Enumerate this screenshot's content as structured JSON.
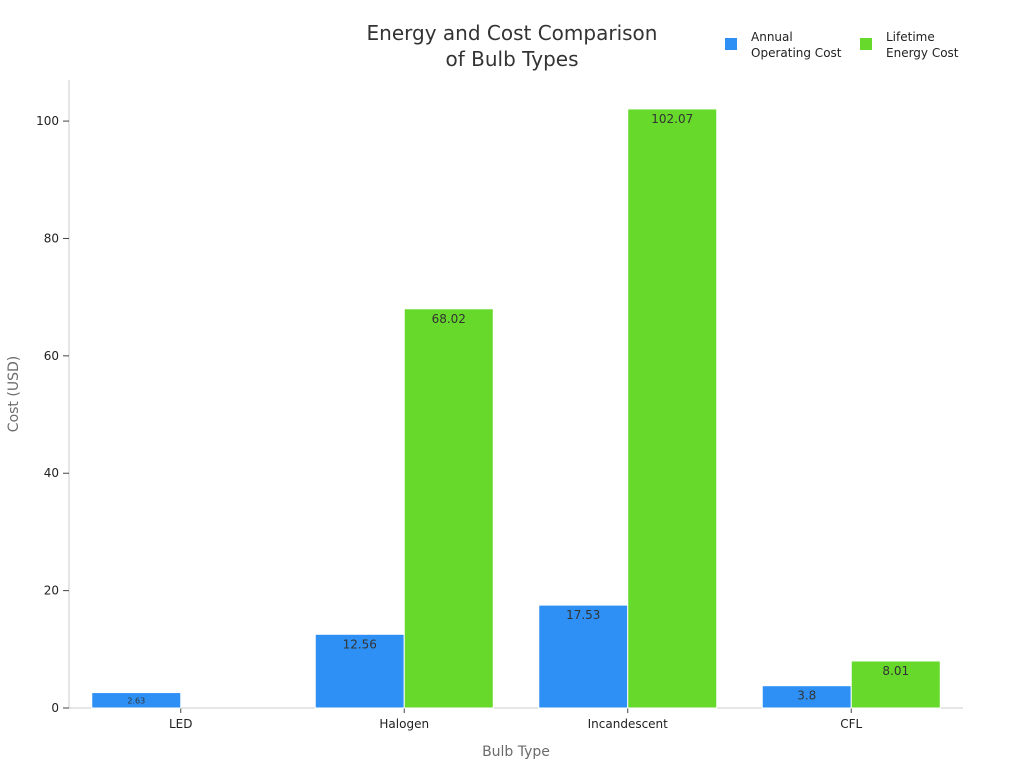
{
  "chart_data": {
    "type": "bar",
    "title_lines": [
      "Energy and Cost Comparison",
      "of Bulb Types"
    ],
    "xlabel": "Bulb Type",
    "ylabel": "Cost (USD)",
    "categories": [
      "LED",
      "Halogen",
      "Incandescent",
      "CFL"
    ],
    "ylim": [
      0,
      107
    ],
    "yticks": [
      0,
      20,
      40,
      60,
      80,
      100
    ],
    "grid": false,
    "legend_position": "top-right",
    "series": [
      {
        "name_lines": [
          "Annual",
          "Operating Cost"
        ],
        "color": "#2e90f5",
        "values": [
          2.63,
          12.56,
          17.53,
          3.8
        ],
        "labels": [
          "2.63",
          "12.56",
          "17.53",
          "3.8"
        ]
      },
      {
        "name_lines": [
          "Lifetime",
          "Energy Cost"
        ],
        "color": "#66d92a",
        "values": [
          null,
          68.02,
          102.07,
          8.01
        ],
        "labels": [
          "",
          "68.02",
          "102.07",
          "8.01"
        ]
      }
    ]
  }
}
